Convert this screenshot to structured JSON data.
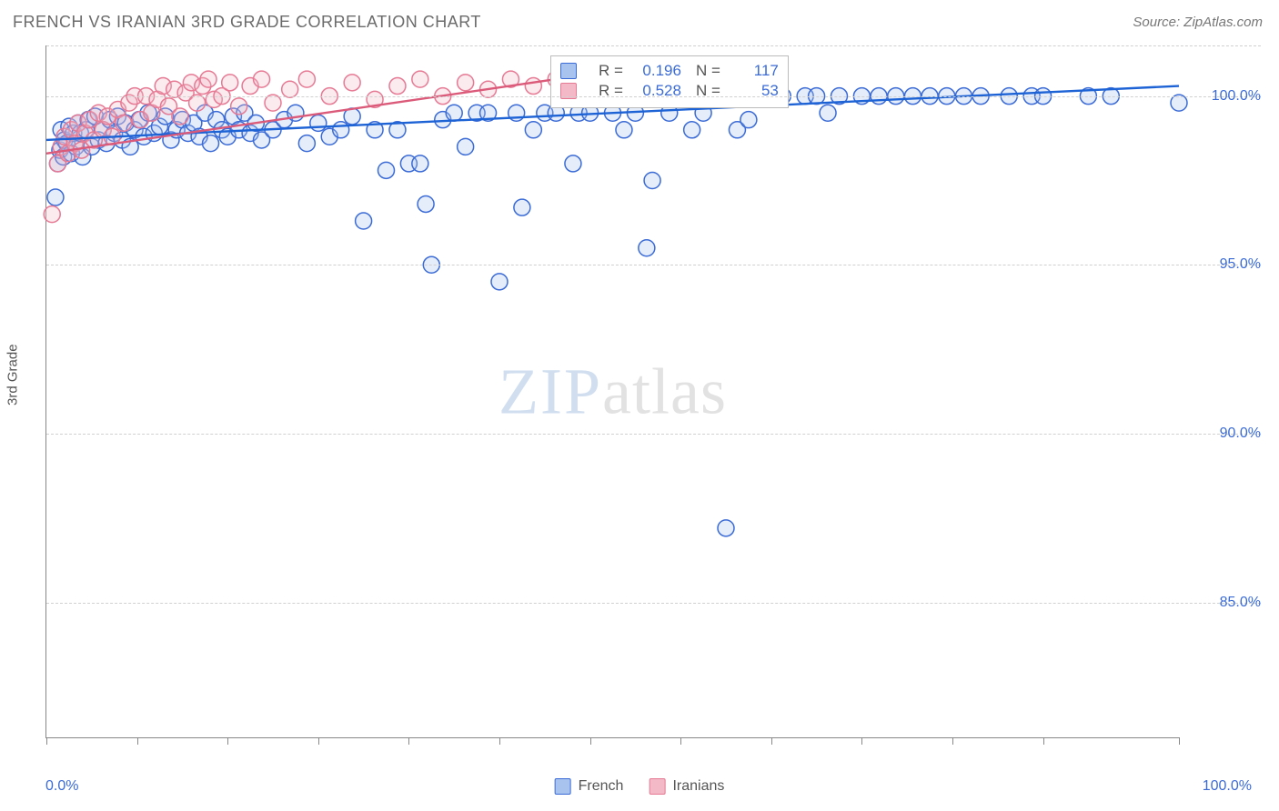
{
  "meta": {
    "title": "FRENCH VS IRANIAN 3RD GRADE CORRELATION CHART",
    "source_label": "Source:",
    "source_name": "ZipAtlas.com",
    "ylabel": "3rd Grade",
    "watermark_zip": "ZIP",
    "watermark_atlas": "atlas"
  },
  "chart": {
    "type": "scatter",
    "background_color": "#ffffff",
    "grid_color": "#d0d0d0",
    "axis_color": "#888888",
    "xlim": [
      0,
      100
    ],
    "ylim": [
      81,
      101.5
    ],
    "x_tick_positions": [
      0,
      8,
      16,
      24,
      32,
      40,
      48,
      56,
      64,
      72,
      80,
      88,
      100
    ],
    "y_gridlines": [
      85,
      90,
      95,
      100,
      101.5
    ],
    "y_tick_labels": [
      {
        "y": 85,
        "text": "85.0%"
      },
      {
        "y": 90,
        "text": "90.0%"
      },
      {
        "y": 95,
        "text": "95.0%"
      },
      {
        "y": 100,
        "text": "100.0%"
      }
    ],
    "x_min_label": "0.0%",
    "x_max_label": "100.0%",
    "marker_radius": 9,
    "marker_stroke_width": 1.5,
    "marker_fill_opacity": 0.3,
    "trend_line_width": 2.4,
    "series": [
      {
        "key": "french",
        "label": "French",
        "fill_color": "#a8c3ee",
        "stroke_color": "#3b6bd6",
        "line_color": "#1e63d6",
        "r": "0.196",
        "n": "117",
        "trend": {
          "x1": 0,
          "y1": 98.7,
          "x2": 100,
          "y2": 100.3
        },
        "points": [
          [
            0.8,
            97.0
          ],
          [
            1.0,
            98.0
          ],
          [
            1.2,
            98.4
          ],
          [
            1.3,
            99.0
          ],
          [
            1.5,
            98.2
          ],
          [
            1.6,
            98.7
          ],
          [
            1.8,
            98.6
          ],
          [
            2.0,
            99.1
          ],
          [
            2.2,
            98.3
          ],
          [
            2.4,
            98.9
          ],
          [
            2.6,
            98.5
          ],
          [
            2.8,
            99.2
          ],
          [
            3.0,
            98.9
          ],
          [
            3.2,
            98.2
          ],
          [
            3.5,
            99.0
          ],
          [
            3.7,
            99.3
          ],
          [
            4.0,
            98.5
          ],
          [
            4.3,
            99.4
          ],
          [
            4.6,
            98.7
          ],
          [
            5.0,
            99.0
          ],
          [
            5.3,
            98.6
          ],
          [
            5.6,
            99.3
          ],
          [
            6.0,
            98.9
          ],
          [
            6.3,
            99.4
          ],
          [
            6.7,
            98.7
          ],
          [
            7.0,
            99.2
          ],
          [
            7.4,
            98.5
          ],
          [
            7.8,
            99.0
          ],
          [
            8.2,
            99.3
          ],
          [
            8.6,
            98.8
          ],
          [
            9.0,
            99.5
          ],
          [
            9.5,
            98.9
          ],
          [
            10.0,
            99.1
          ],
          [
            10.5,
            99.4
          ],
          [
            11.0,
            98.7
          ],
          [
            11.5,
            99.0
          ],
          [
            12.0,
            99.3
          ],
          [
            12.5,
            98.9
          ],
          [
            13.0,
            99.2
          ],
          [
            13.5,
            98.8
          ],
          [
            14.0,
            99.5
          ],
          [
            14.5,
            98.6
          ],
          [
            15.0,
            99.3
          ],
          [
            15.5,
            99.0
          ],
          [
            16.0,
            98.8
          ],
          [
            16.5,
            99.4
          ],
          [
            17.0,
            99.0
          ],
          [
            17.5,
            99.5
          ],
          [
            18.0,
            98.9
          ],
          [
            18.5,
            99.2
          ],
          [
            19.0,
            98.7
          ],
          [
            20.0,
            99.0
          ],
          [
            21.0,
            99.3
          ],
          [
            22.0,
            99.5
          ],
          [
            23.0,
            98.6
          ],
          [
            24.0,
            99.2
          ],
          [
            25.0,
            98.8
          ],
          [
            26.0,
            99.0
          ],
          [
            27.0,
            99.4
          ],
          [
            28.0,
            96.3
          ],
          [
            29.0,
            99.0
          ],
          [
            30.0,
            97.8
          ],
          [
            31.0,
            99.0
          ],
          [
            32.0,
            98.0
          ],
          [
            33.0,
            98.0
          ],
          [
            33.5,
            96.8
          ],
          [
            34.0,
            95.0
          ],
          [
            35.0,
            99.3
          ],
          [
            36.0,
            99.5
          ],
          [
            37.0,
            98.5
          ],
          [
            38.0,
            99.5
          ],
          [
            39.0,
            99.5
          ],
          [
            40.0,
            94.5
          ],
          [
            41.5,
            99.5
          ],
          [
            42.0,
            96.7
          ],
          [
            43.0,
            99.0
          ],
          [
            44.0,
            99.5
          ],
          [
            45.0,
            99.5
          ],
          [
            46.0,
            100.0
          ],
          [
            46.5,
            98.0
          ],
          [
            47.0,
            99.5
          ],
          [
            48.0,
            99.5
          ],
          [
            49.0,
            100.0
          ],
          [
            50.0,
            99.5
          ],
          [
            51.0,
            99.0
          ],
          [
            52.0,
            99.5
          ],
          [
            53.0,
            95.5
          ],
          [
            53.5,
            97.5
          ],
          [
            54.0,
            100.0
          ],
          [
            55.0,
            99.5
          ],
          [
            56.0,
            100.0
          ],
          [
            57.0,
            99.0
          ],
          [
            58.0,
            99.5
          ],
          [
            59.0,
            100.0
          ],
          [
            60.0,
            87.2
          ],
          [
            61.0,
            99.0
          ],
          [
            62.0,
            99.3
          ],
          [
            63.0,
            100.0
          ],
          [
            65.0,
            100.0
          ],
          [
            67.0,
            100.0
          ],
          [
            68.0,
            100.0
          ],
          [
            69.0,
            99.5
          ],
          [
            70.0,
            100.0
          ],
          [
            72.0,
            100.0
          ],
          [
            73.5,
            100.0
          ],
          [
            75.0,
            100.0
          ],
          [
            76.5,
            100.0
          ],
          [
            78.0,
            100.0
          ],
          [
            79.5,
            100.0
          ],
          [
            81.0,
            100.0
          ],
          [
            82.5,
            100.0
          ],
          [
            85.0,
            100.0
          ],
          [
            87.0,
            100.0
          ],
          [
            88.0,
            100.0
          ],
          [
            92.0,
            100.0
          ],
          [
            94.0,
            100.0
          ],
          [
            100.0,
            99.8
          ]
        ]
      },
      {
        "key": "iranians",
        "label": "Iranians",
        "fill_color": "#f3b9c6",
        "stroke_color": "#e67a94",
        "line_color": "#db5a7a",
        "r": "0.528",
        "n": "53",
        "trend": {
          "x1": 0,
          "y1": 98.3,
          "x2": 45,
          "y2": 100.5
        },
        "points": [
          [
            0.5,
            96.5
          ],
          [
            1.0,
            98.0
          ],
          [
            1.3,
            98.5
          ],
          [
            1.6,
            98.8
          ],
          [
            1.9,
            98.3
          ],
          [
            2.2,
            99.0
          ],
          [
            2.5,
            98.6
          ],
          [
            2.8,
            99.2
          ],
          [
            3.1,
            98.4
          ],
          [
            3.4,
            98.9
          ],
          [
            3.8,
            99.3
          ],
          [
            4.2,
            98.7
          ],
          [
            4.6,
            99.5
          ],
          [
            5.0,
            99.0
          ],
          [
            5.4,
            99.4
          ],
          [
            5.8,
            98.8
          ],
          [
            6.3,
            99.6
          ],
          [
            6.8,
            99.2
          ],
          [
            7.3,
            99.8
          ],
          [
            7.8,
            100.0
          ],
          [
            8.3,
            99.3
          ],
          [
            8.8,
            100.0
          ],
          [
            9.3,
            99.5
          ],
          [
            9.8,
            99.9
          ],
          [
            10.3,
            100.3
          ],
          [
            10.8,
            99.7
          ],
          [
            11.3,
            100.2
          ],
          [
            11.8,
            99.4
          ],
          [
            12.3,
            100.1
          ],
          [
            12.8,
            100.4
          ],
          [
            13.3,
            99.8
          ],
          [
            13.8,
            100.3
          ],
          [
            14.3,
            100.5
          ],
          [
            14.8,
            99.9
          ],
          [
            15.5,
            100.0
          ],
          [
            16.2,
            100.4
          ],
          [
            17.0,
            99.7
          ],
          [
            18.0,
            100.3
          ],
          [
            19.0,
            100.5
          ],
          [
            20.0,
            99.8
          ],
          [
            21.5,
            100.2
          ],
          [
            23.0,
            100.5
          ],
          [
            25.0,
            100.0
          ],
          [
            27.0,
            100.4
          ],
          [
            29.0,
            99.9
          ],
          [
            31.0,
            100.3
          ],
          [
            33.0,
            100.5
          ],
          [
            35.0,
            100.0
          ],
          [
            37.0,
            100.4
          ],
          [
            39.0,
            100.2
          ],
          [
            41.0,
            100.5
          ],
          [
            43.0,
            100.3
          ],
          [
            45.0,
            100.5
          ]
        ]
      }
    ],
    "stats_box": {
      "left_pct": 44.5,
      "top_y": 101.2
    },
    "legend_swatch_size": 18,
    "title_fontsize": 18,
    "label_fontsize": 15,
    "tick_fontsize": 16
  }
}
